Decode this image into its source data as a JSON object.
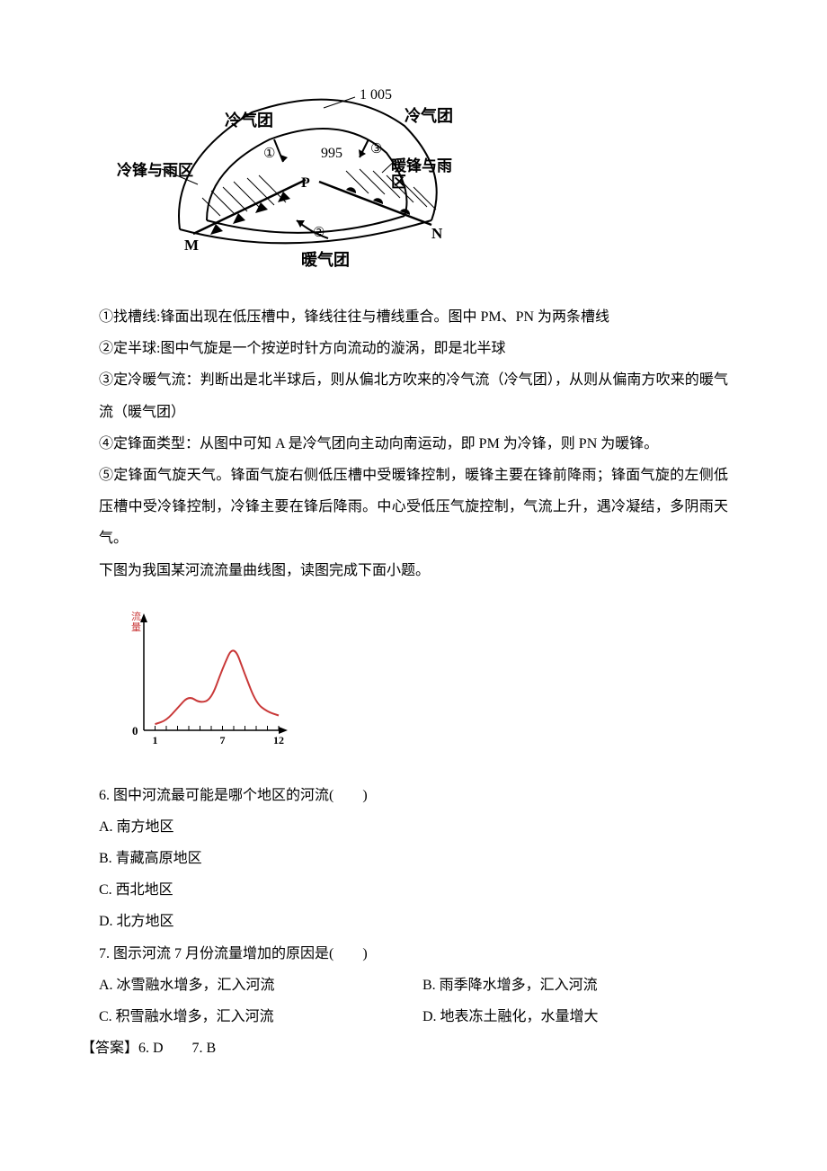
{
  "diagram1": {
    "labels": {
      "cold_air_top_left": "冷气团",
      "cold_air_top_right": "冷气团",
      "cold_front_rain": "冷锋与雨区",
      "warm_front_rain": "暖锋与雨区",
      "warm_air_bottom": "暖气团",
      "point_m": "M",
      "point_n": "N",
      "point_p": "P",
      "pressure_outer": "1 005",
      "pressure_inner": "995",
      "circled_1": "①",
      "circled_2": "②",
      "circled_3": "③"
    },
    "colors": {
      "stroke": "#000000",
      "fill": "#ffffff"
    }
  },
  "explanation": {
    "step1": "①找槽线:锋面出现在低压槽中，锋线往往与槽线重合。图中 PM、PN 为两条槽线",
    "step2": "②定半球:图中气旋是一个按逆时针方向流动的漩涡，即是北半球",
    "step3": "③定冷暖气流：判断出是北半球后，则从偏北方吹来的冷气流（冷气团），从则从偏南方吹来的暖气流（暖气团）",
    "step4": "④定锋面类型：从图中可知 A 是冷气团向主动向南运动，即 PM 为冷锋，则 PN 为暖锋。",
    "step5": "⑤定锋面气旋天气。锋面气旋右侧低压槽中受暖锋控制，暖锋主要在锋前降雨；锋面气旋的左侧低压槽中受冷锋控制，冷锋主要在锋后降雨。中心受低压气旋控制，气流上升，遇冷凝结，多阴雨天气。"
  },
  "chart_intro": "下图为我国某河流流量曲线图，读图完成下面小题。",
  "chart": {
    "type": "line",
    "y_label": "流量",
    "x_ticks": [
      1,
      2,
      3,
      4,
      5,
      6,
      7,
      8,
      9,
      10,
      11,
      12
    ],
    "x_tick_labels": [
      "1",
      "",
      "",
      "",
      "",
      "",
      "7",
      "",
      "",
      "",
      "",
      "12"
    ],
    "data_points": [
      {
        "x": 1,
        "y": 5
      },
      {
        "x": 2,
        "y": 8
      },
      {
        "x": 3,
        "y": 18
      },
      {
        "x": 4,
        "y": 28
      },
      {
        "x": 5,
        "y": 22
      },
      {
        "x": 6,
        "y": 25
      },
      {
        "x": 7,
        "y": 50
      },
      {
        "x": 8,
        "y": 70
      },
      {
        "x": 9,
        "y": 45
      },
      {
        "x": 10,
        "y": 22
      },
      {
        "x": 11,
        "y": 15
      },
      {
        "x": 12,
        "y": 12
      }
    ],
    "colors": {
      "line": "#c93838",
      "axis": "#000000",
      "label": "#c93838",
      "background": "#ffffff"
    },
    "line_width": 2,
    "axis_width": 1.5
  },
  "question6": {
    "stem": "6. 图中河流最可能是哪个地区的河流(　　)",
    "options": {
      "a": "A. 南方地区",
      "b": "B. 青藏高原地区",
      "c": "C. 西北地区",
      "d": "D. 北方地区"
    }
  },
  "question7": {
    "stem": "7. 图示河流 7 月份流量增加的原因是(　　)",
    "options": {
      "a": "A. 冰雪融水增多，汇入河流",
      "b": "B. 雨季降水增多，汇入河流",
      "c": "C. 积雪融水增多，汇入河流",
      "d": "D. 地表冻土融化，水量增大"
    }
  },
  "answers": "【答案】6. D　　7. B"
}
